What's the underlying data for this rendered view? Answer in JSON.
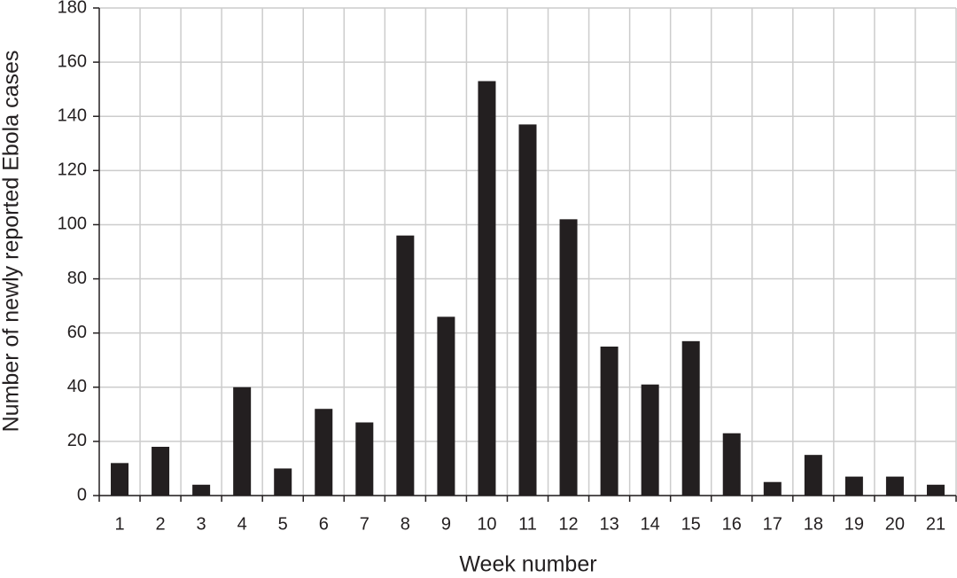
{
  "chart_data": {
    "type": "bar",
    "xlabel": "Week number",
    "ylabel": "Number of newly reported Ebola cases",
    "categories": [
      "1",
      "2",
      "3",
      "4",
      "5",
      "6",
      "7",
      "8",
      "9",
      "10",
      "11",
      "12",
      "13",
      "14",
      "15",
      "16",
      "17",
      "18",
      "19",
      "20",
      "21"
    ],
    "values": [
      12,
      18,
      4,
      40,
      10,
      32,
      27,
      96,
      66,
      153,
      137,
      102,
      55,
      41,
      57,
      23,
      5,
      15,
      7,
      7,
      4
    ],
    "color": "#231f20",
    "ylim": [
      0,
      180
    ],
    "yticks": [
      0,
      20,
      40,
      60,
      80,
      100,
      120,
      140,
      160,
      180
    ],
    "grid": true
  }
}
